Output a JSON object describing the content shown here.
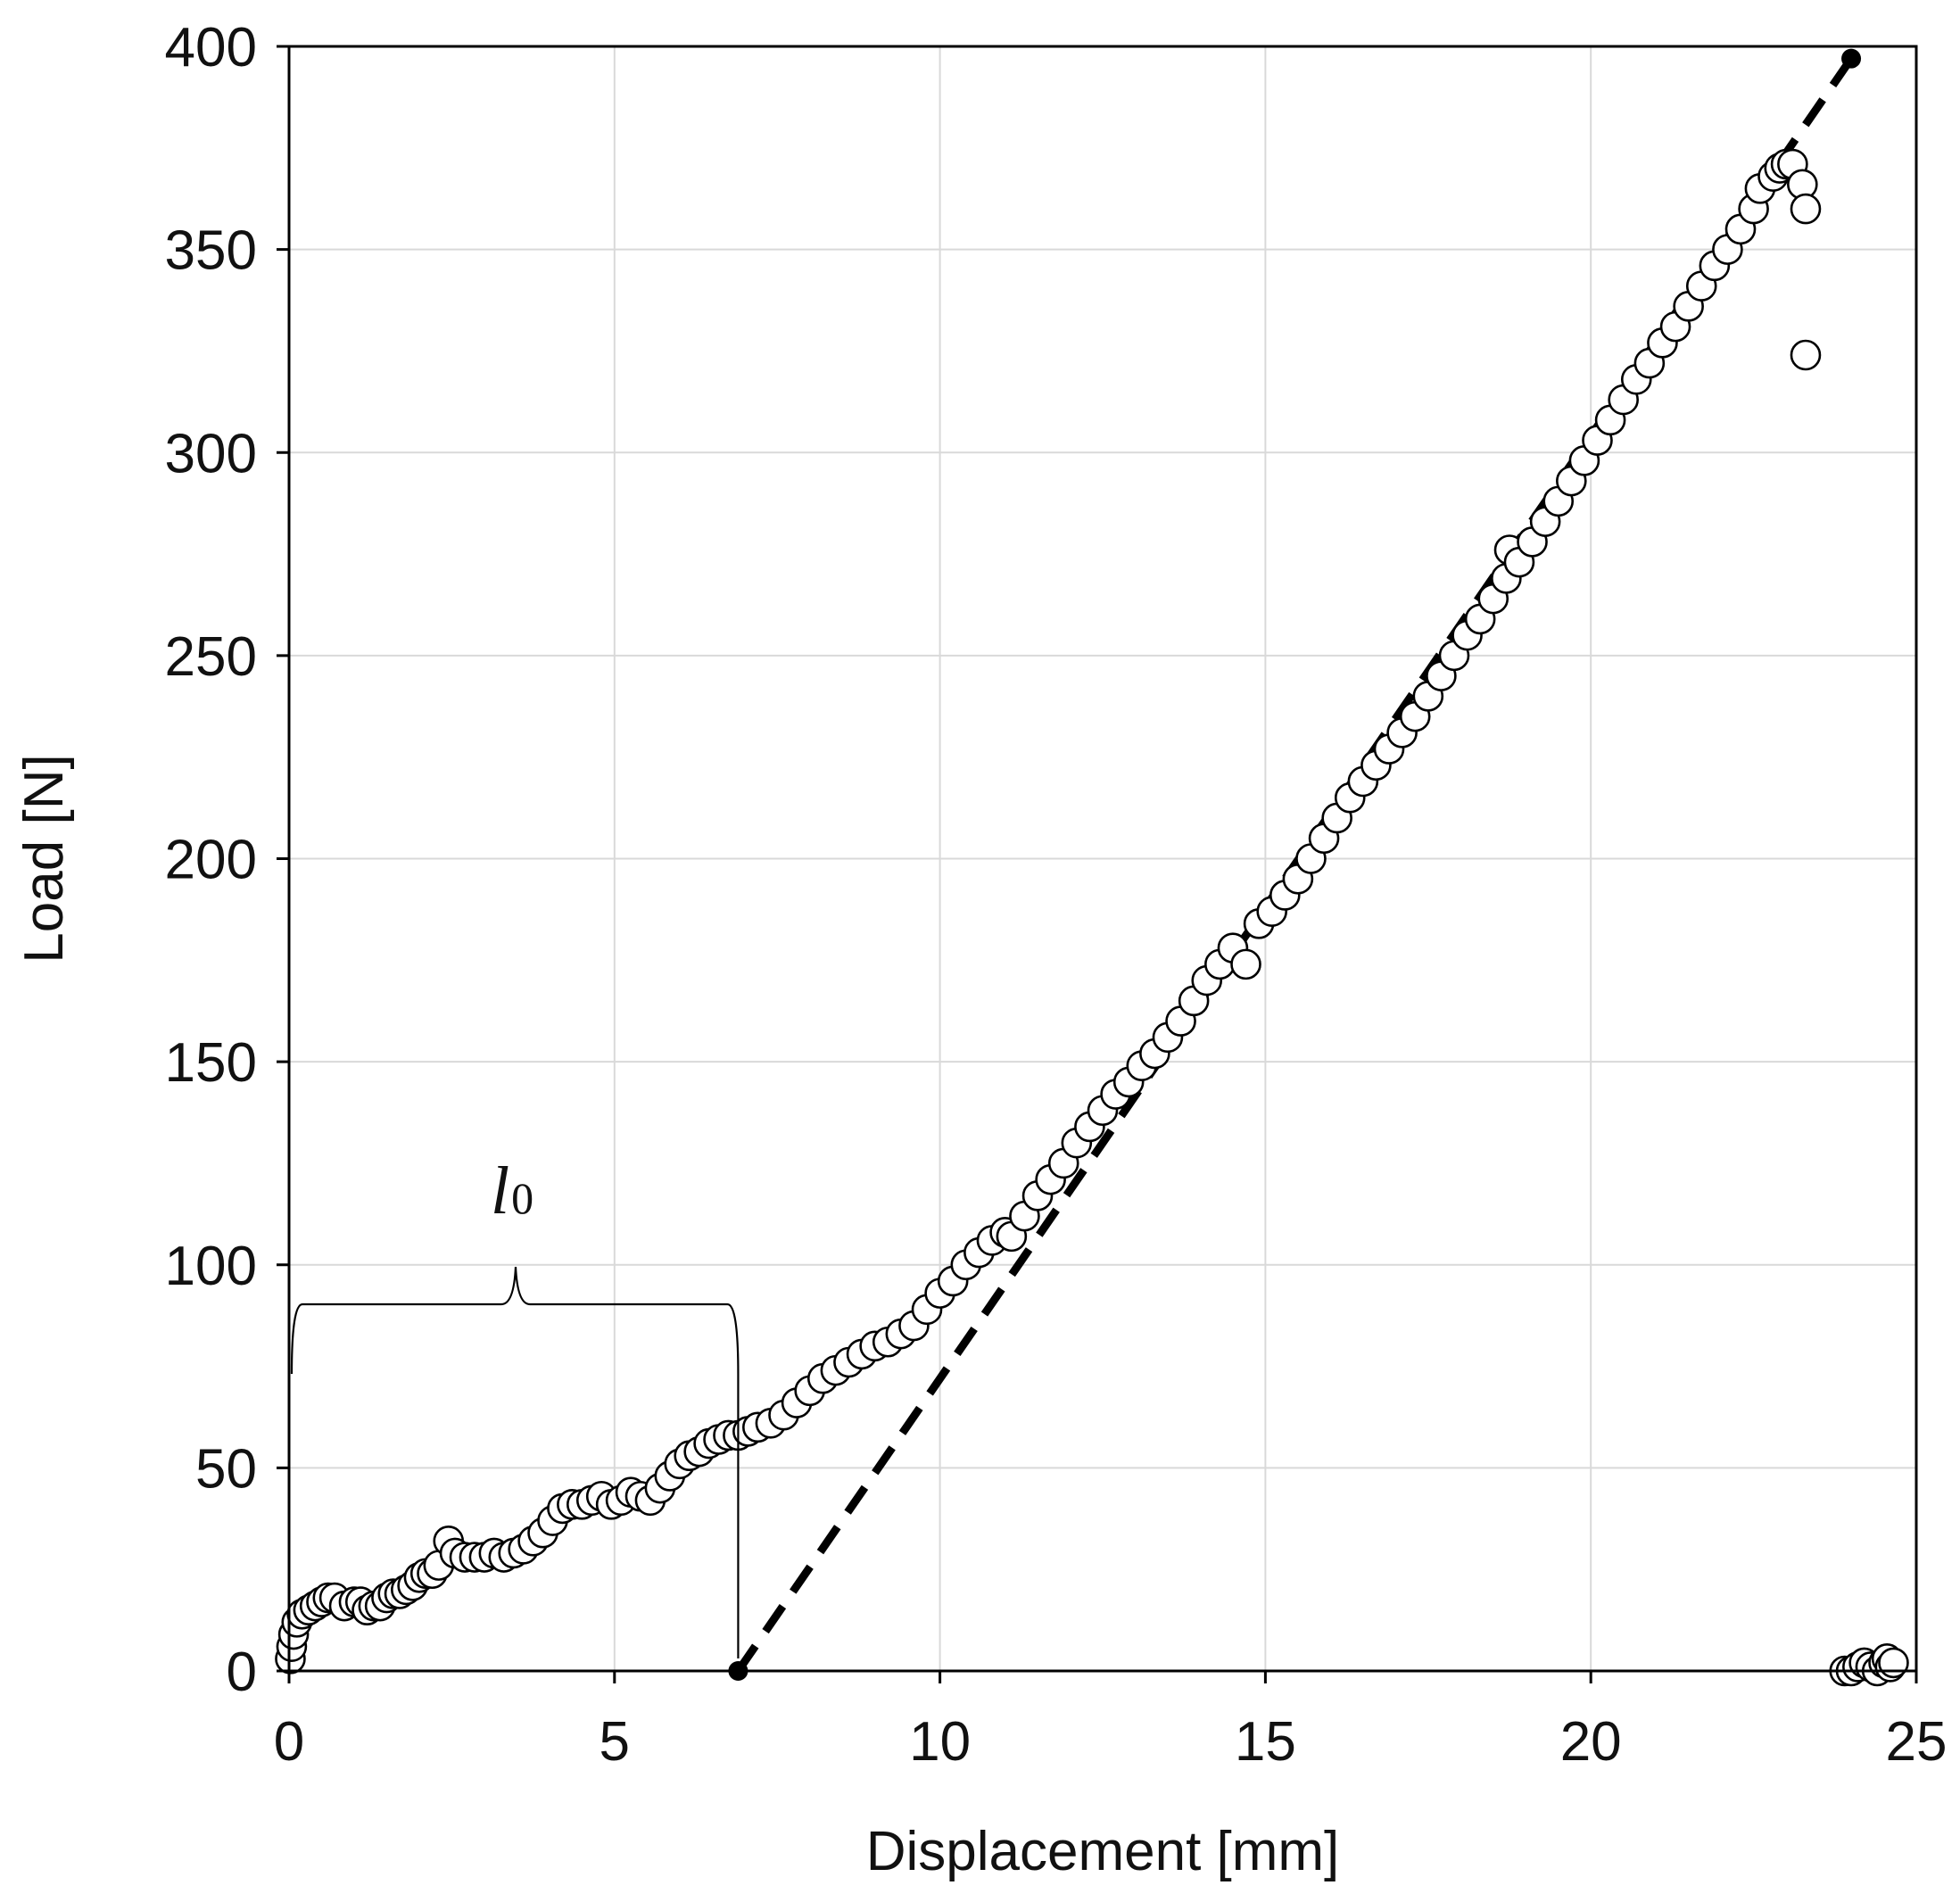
{
  "chart_data": {
    "type": "scatter",
    "xlabel": "Displacement [mm]",
    "ylabel": "Load [N]",
    "xlim": [
      0,
      25
    ],
    "ylim": [
      0,
      400
    ],
    "xticks": [
      "0",
      "5",
      "10",
      "15",
      "20",
      "25"
    ],
    "yticks": [
      "0",
      "50",
      "100",
      "150",
      "200",
      "250",
      "300",
      "350",
      "400"
    ],
    "grid": "on",
    "legend": "none",
    "annotation": {
      "text": "l",
      "subscript": "0",
      "range_x": [
        0,
        6.9
      ]
    },
    "fit_line": {
      "style": "dashed",
      "x": [
        6.9,
        24.0
      ],
      "y": [
        0,
        397
      ]
    },
    "series": [
      {
        "marker": "open-circle",
        "points": [
          [
            0.02,
            3
          ],
          [
            0.04,
            6
          ],
          [
            0.07,
            9
          ],
          [
            0.12,
            12
          ],
          [
            0.2,
            14
          ],
          [
            0.3,
            15
          ],
          [
            0.4,
            16
          ],
          [
            0.5,
            17
          ],
          [
            0.6,
            18
          ],
          [
            0.7,
            18
          ],
          [
            0.85,
            16
          ],
          [
            1.0,
            17
          ],
          [
            1.1,
            17
          ],
          [
            1.2,
            15
          ],
          [
            1.3,
            16
          ],
          [
            1.4,
            16
          ],
          [
            1.5,
            18
          ],
          [
            1.6,
            19
          ],
          [
            1.7,
            19
          ],
          [
            1.8,
            20
          ],
          [
            1.9,
            21
          ],
          [
            2.0,
            23
          ],
          [
            2.1,
            24
          ],
          [
            2.2,
            24
          ],
          [
            2.3,
            26
          ],
          [
            2.45,
            32
          ],
          [
            2.55,
            29
          ],
          [
            2.7,
            28
          ],
          [
            2.85,
            28
          ],
          [
            3.0,
            28
          ],
          [
            3.15,
            29
          ],
          [
            3.3,
            28
          ],
          [
            3.45,
            29
          ],
          [
            3.6,
            30
          ],
          [
            3.75,
            32
          ],
          [
            3.9,
            34
          ],
          [
            4.05,
            37
          ],
          [
            4.2,
            40
          ],
          [
            4.35,
            41
          ],
          [
            4.5,
            41
          ],
          [
            4.65,
            42
          ],
          [
            4.8,
            43
          ],
          [
            4.95,
            41
          ],
          [
            5.1,
            42
          ],
          [
            5.25,
            44
          ],
          [
            5.4,
            43
          ],
          [
            5.55,
            42
          ],
          [
            5.7,
            45
          ],
          [
            5.85,
            48
          ],
          [
            6.0,
            51
          ],
          [
            6.15,
            53
          ],
          [
            6.3,
            54
          ],
          [
            6.45,
            56
          ],
          [
            6.6,
            57
          ],
          [
            6.75,
            58
          ],
          [
            6.9,
            58
          ],
          [
            7.05,
            59
          ],
          [
            7.2,
            60
          ],
          [
            7.4,
            61
          ],
          [
            7.6,
            63
          ],
          [
            7.8,
            66
          ],
          [
            8.0,
            69
          ],
          [
            8.2,
            72
          ],
          [
            8.4,
            74
          ],
          [
            8.6,
            76
          ],
          [
            8.8,
            78
          ],
          [
            9.0,
            80
          ],
          [
            9.2,
            81
          ],
          [
            9.4,
            83
          ],
          [
            9.6,
            85
          ],
          [
            9.8,
            89
          ],
          [
            10.0,
            93
          ],
          [
            10.2,
            96
          ],
          [
            10.4,
            100
          ],
          [
            10.6,
            103
          ],
          [
            10.8,
            106
          ],
          [
            11.0,
            108
          ],
          [
            11.1,
            107
          ],
          [
            11.3,
            112
          ],
          [
            11.5,
            117
          ],
          [
            11.7,
            121
          ],
          [
            11.9,
            125
          ],
          [
            12.1,
            130
          ],
          [
            12.3,
            134
          ],
          [
            12.5,
            138
          ],
          [
            12.7,
            142
          ],
          [
            12.9,
            145
          ],
          [
            13.1,
            149
          ],
          [
            13.3,
            152
          ],
          [
            13.5,
            156
          ],
          [
            13.7,
            160
          ],
          [
            13.9,
            165
          ],
          [
            14.1,
            170
          ],
          [
            14.3,
            174
          ],
          [
            14.5,
            178
          ],
          [
            14.7,
            174
          ],
          [
            14.9,
            184
          ],
          [
            15.1,
            187
          ],
          [
            15.3,
            191
          ],
          [
            15.5,
            195
          ],
          [
            15.7,
            200
          ],
          [
            15.9,
            205
          ],
          [
            16.1,
            210
          ],
          [
            16.3,
            215
          ],
          [
            16.5,
            219
          ],
          [
            16.7,
            223
          ],
          [
            16.9,
            227
          ],
          [
            17.1,
            231
          ],
          [
            17.3,
            235
          ],
          [
            17.5,
            240
          ],
          [
            17.7,
            245
          ],
          [
            17.9,
            250
          ],
          [
            18.1,
            255
          ],
          [
            18.3,
            259
          ],
          [
            18.5,
            264
          ],
          [
            18.7,
            269
          ],
          [
            18.75,
            276
          ],
          [
            18.9,
            273
          ],
          [
            19.1,
            278
          ],
          [
            19.3,
            283
          ],
          [
            19.5,
            288
          ],
          [
            19.7,
            293
          ],
          [
            19.9,
            298
          ],
          [
            20.1,
            303
          ],
          [
            20.3,
            308
          ],
          [
            20.5,
            313
          ],
          [
            20.7,
            318
          ],
          [
            20.9,
            322
          ],
          [
            21.1,
            327
          ],
          [
            21.3,
            331
          ],
          [
            21.5,
            336
          ],
          [
            21.7,
            341
          ],
          [
            21.9,
            346
          ],
          [
            22.1,
            350
          ],
          [
            22.3,
            355
          ],
          [
            22.5,
            360
          ],
          [
            22.6,
            365
          ],
          [
            22.8,
            368
          ],
          [
            22.9,
            370
          ],
          [
            23.0,
            371
          ],
          [
            23.1,
            371
          ],
          [
            23.25,
            366
          ],
          [
            23.3,
            360
          ],
          [
            23.3,
            324
          ],
          [
            23.9,
            0
          ],
          [
            24.0,
            0
          ],
          [
            24.1,
            1
          ],
          [
            24.2,
            2
          ],
          [
            24.3,
            1
          ],
          [
            24.4,
            0
          ],
          [
            24.5,
            2
          ],
          [
            24.55,
            3
          ],
          [
            24.6,
            1
          ],
          [
            24.65,
            2
          ]
        ]
      }
    ]
  }
}
